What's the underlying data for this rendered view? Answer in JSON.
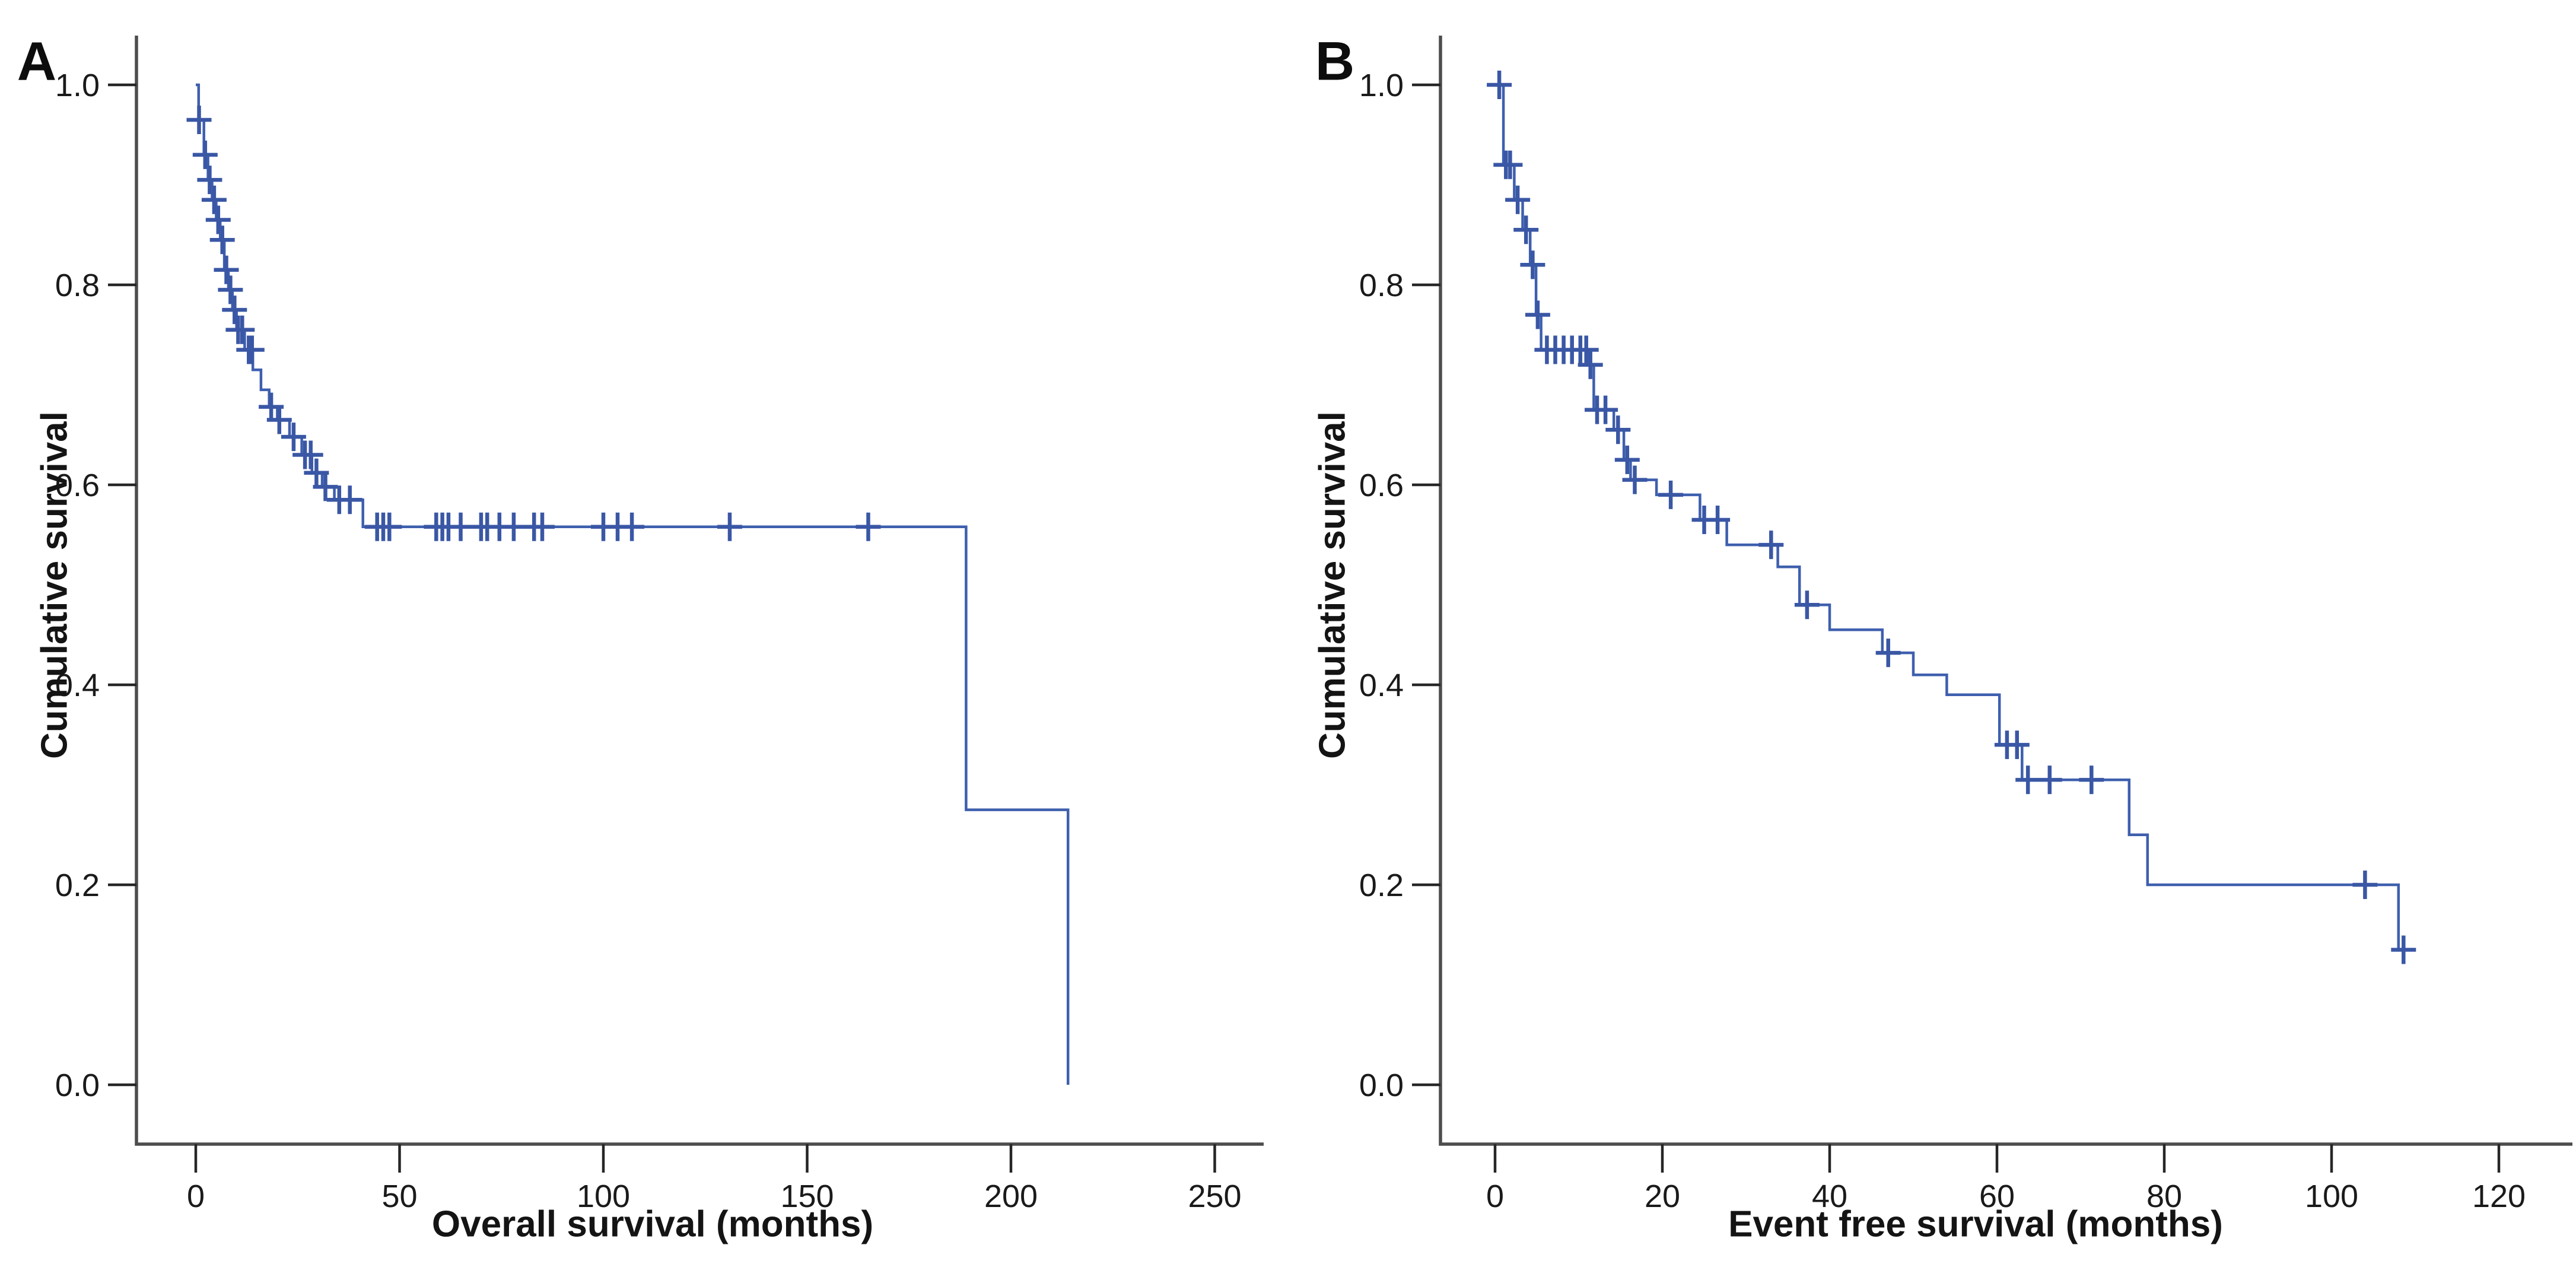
{
  "figure": {
    "background_color": "#ffffff",
    "curve_color": "#3e5fae",
    "censor_color": "#3a57a5",
    "axis_color": "#4d4d4d",
    "tick_color": "#262626",
    "text_color": "#141414"
  },
  "chart_data": [
    {
      "type": "line",
      "km_type": "kaplan_meier_step_function",
      "panel_label": "A",
      "xlabel": "Overall survival (months)",
      "ylabel": "Cumulative survival",
      "xlim": [
        0,
        250
      ],
      "ylim": [
        0.0,
        1.0
      ],
      "grid": false,
      "legend": null,
      "x_ticks": [
        {
          "v": 0,
          "label": "0"
        },
        {
          "v": 50,
          "label": "50"
        },
        {
          "v": 100,
          "label": "100"
        },
        {
          "v": 150,
          "label": "150"
        },
        {
          "v": 200,
          "label": "200"
        },
        {
          "v": 250,
          "label": "250"
        }
      ],
      "y_ticks": [
        {
          "v": 0.0,
          "label": "0.0"
        },
        {
          "v": 0.2,
          "label": "0.2"
        },
        {
          "v": 0.4,
          "label": "0.4"
        },
        {
          "v": 0.6,
          "label": "0.6"
        },
        {
          "v": 0.8,
          "label": "0.8"
        },
        {
          "v": 1.0,
          "label": "1.0"
        }
      ],
      "series": [
        {
          "name": "Overall survival",
          "steps": [
            [
              0,
              1.0
            ],
            [
              0.7,
              0.965
            ],
            [
              2,
              0.93
            ],
            [
              3,
              0.905
            ],
            [
              4,
              0.885
            ],
            [
              5,
              0.865
            ],
            [
              6,
              0.845
            ],
            [
              7,
              0.815
            ],
            [
              8,
              0.795
            ],
            [
              9,
              0.775
            ],
            [
              10,
              0.755
            ],
            [
              12,
              0.735
            ],
            [
              14,
              0.715
            ],
            [
              16,
              0.695
            ],
            [
              18,
              0.678
            ],
            [
              20,
              0.665
            ],
            [
              23,
              0.648
            ],
            [
              26,
              0.63
            ],
            [
              28.5,
              0.612
            ],
            [
              31,
              0.598
            ],
            [
              34,
              0.585
            ],
            [
              41,
              0.558
            ],
            [
              189,
              0.275
            ],
            [
              214,
              0.0
            ]
          ],
          "end_tail_t": null,
          "censors": [
            [
              0.8,
              0.965
            ],
            [
              2.3,
              0.93
            ],
            [
              3.4,
              0.905
            ],
            [
              4.5,
              0.885
            ],
            [
              5.5,
              0.865
            ],
            [
              6.5,
              0.845
            ],
            [
              7.5,
              0.815
            ],
            [
              8.5,
              0.795
            ],
            [
              9.5,
              0.775
            ],
            [
              10.4,
              0.755
            ],
            [
              11.4,
              0.755
            ],
            [
              13,
              0.735
            ],
            [
              13.8,
              0.735
            ],
            [
              18.5,
              0.678
            ],
            [
              20.5,
              0.665
            ],
            [
              24,
              0.648
            ],
            [
              26.8,
              0.63
            ],
            [
              28.2,
              0.63
            ],
            [
              29.6,
              0.612
            ],
            [
              31.8,
              0.598
            ],
            [
              35.2,
              0.585
            ],
            [
              37.8,
              0.585
            ],
            [
              44.5,
              0.558
            ],
            [
              46,
              0.558
            ],
            [
              47.5,
              0.558
            ],
            [
              59,
              0.558
            ],
            [
              60.5,
              0.558
            ],
            [
              62,
              0.558
            ],
            [
              65,
              0.558
            ],
            [
              70,
              0.558
            ],
            [
              71.5,
              0.558
            ],
            [
              74.5,
              0.558
            ],
            [
              78,
              0.558
            ],
            [
              83,
              0.558
            ],
            [
              85,
              0.558
            ],
            [
              100,
              0.558
            ],
            [
              103.5,
              0.558
            ],
            [
              107,
              0.558
            ],
            [
              131,
              0.558
            ],
            [
              165,
              0.558
            ]
          ]
        }
      ]
    },
    {
      "type": "line",
      "km_type": "kaplan_meier_step_function",
      "panel_label": "B",
      "xlabel": "Event free survival (months)",
      "ylabel": "Cumulative survival",
      "xlim": [
        0,
        120
      ],
      "ylim": [
        0.0,
        1.0
      ],
      "grid": false,
      "legend": null,
      "x_ticks": [
        {
          "v": 0,
          "label": "0"
        },
        {
          "v": 20,
          "label": "20"
        },
        {
          "v": 40,
          "label": "40"
        },
        {
          "v": 60,
          "label": "60"
        },
        {
          "v": 80,
          "label": "80"
        },
        {
          "v": 100,
          "label": "100"
        },
        {
          "v": 120,
          "label": "120"
        }
      ],
      "y_ticks": [
        {
          "v": 0.0,
          "label": "0.0"
        },
        {
          "v": 0.2,
          "label": "0.2"
        },
        {
          "v": 0.4,
          "label": "0.4"
        },
        {
          "v": 0.6,
          "label": "0.6"
        },
        {
          "v": 0.8,
          "label": "0.8"
        },
        {
          "v": 1.0,
          "label": "1.0"
        }
      ],
      "series": [
        {
          "name": "Event free survival",
          "steps": [
            [
              0,
              1.0
            ],
            [
              1,
              0.92
            ],
            [
              2.3,
              0.885
            ],
            [
              3.3,
              0.855
            ],
            [
              4.2,
              0.82
            ],
            [
              4.9,
              0.77
            ],
            [
              5.5,
              0.735
            ],
            [
              11.1,
              0.72
            ],
            [
              11.8,
              0.675
            ],
            [
              14.2,
              0.655
            ],
            [
              15.4,
              0.625
            ],
            [
              16.2,
              0.605
            ],
            [
              19.3,
              0.59
            ],
            [
              24.5,
              0.565
            ],
            [
              27.7,
              0.54
            ],
            [
              33.8,
              0.518
            ],
            [
              36.4,
              0.48
            ],
            [
              40,
              0.455
            ],
            [
              46.3,
              0.432
            ],
            [
              50,
              0.41
            ],
            [
              54,
              0.39
            ],
            [
              60.3,
              0.34
            ],
            [
              63,
              0.305
            ],
            [
              75.8,
              0.25
            ],
            [
              78,
              0.2
            ],
            [
              108,
              0.135
            ]
          ],
          "end_tail_t": 109.6,
          "censors": [
            [
              0.5,
              1.0
            ],
            [
              1.3,
              0.92
            ],
            [
              1.8,
              0.92
            ],
            [
              2.7,
              0.885
            ],
            [
              3.7,
              0.855
            ],
            [
              4.5,
              0.82
            ],
            [
              5.1,
              0.77
            ],
            [
              6.2,
              0.735
            ],
            [
              7.2,
              0.735
            ],
            [
              8.2,
              0.735
            ],
            [
              9.2,
              0.735
            ],
            [
              10.2,
              0.735
            ],
            [
              10.9,
              0.735
            ],
            [
              11.4,
              0.72
            ],
            [
              12.2,
              0.675
            ],
            [
              13.2,
              0.675
            ],
            [
              14.7,
              0.655
            ],
            [
              15.8,
              0.625
            ],
            [
              16.7,
              0.605
            ],
            [
              21,
              0.59
            ],
            [
              25,
              0.565
            ],
            [
              26.6,
              0.565
            ],
            [
              33,
              0.54
            ],
            [
              37.3,
              0.48
            ],
            [
              47,
              0.432
            ],
            [
              61.2,
              0.34
            ],
            [
              62.4,
              0.34
            ],
            [
              63.7,
              0.305
            ],
            [
              66.3,
              0.305
            ],
            [
              71.3,
              0.305
            ],
            [
              104,
              0.2
            ],
            [
              108.6,
              0.135
            ]
          ]
        }
      ]
    }
  ]
}
